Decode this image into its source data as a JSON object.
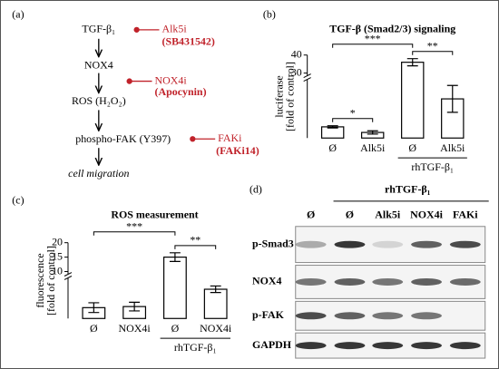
{
  "panel_labels": [
    "(a)",
    "(b)",
    "(c)",
    "(d)"
  ],
  "pathway": {
    "steps": [
      "TGF-β₁",
      "NOX4",
      "ROS (H₂O₂)",
      "phospho-FAK (Y397)",
      "cell migration"
    ],
    "inhibitors": [
      {
        "name": "Alk5i",
        "agent": "(SB431542)"
      },
      {
        "name": "NOX4i",
        "agent": "(Apocynin)"
      },
      {
        "name": "FAKi",
        "agent": "(FAKi14)"
      }
    ]
  },
  "chart_data": [
    {
      "type": "bar",
      "title": "TGF-β (Smad2/3) signaling",
      "y_label": [
        "luciferase",
        "[fold of control]"
      ],
      "categories": [
        "Ø",
        "Alk5i",
        "Ø",
        "Alk5i"
      ],
      "group_label": "rhTGF-β₁",
      "values": [
        1.0,
        0.5,
        36,
        3.5
      ],
      "errors": [
        0.1,
        0.15,
        2,
        1.2
      ],
      "ylim": [
        0,
        40
      ],
      "ybreak": [
        5,
        30
      ],
      "yticks": [
        30,
        40
      ],
      "significance": [
        {
          "from": 0,
          "to": 1,
          "label": "*"
        },
        {
          "from": 0,
          "to": 2,
          "label": "***"
        },
        {
          "from": 2,
          "to": 3,
          "label": "**"
        }
      ]
    },
    {
      "type": "bar",
      "title": "ROS measurement",
      "y_label": [
        "fluorescence",
        "[fold of control]"
      ],
      "categories": [
        "Ø",
        "NOX4i",
        "Ø",
        "NOX4i"
      ],
      "group_label": "rhTGF-β₁",
      "values": [
        1.0,
        1.1,
        15,
        2.7
      ],
      "errors": [
        0.45,
        0.4,
        1.5,
        0.3
      ],
      "ylim": [
        0,
        20
      ],
      "ybreak": [
        3.5,
        10
      ],
      "yticks": [
        10,
        15,
        20
      ],
      "significance": [
        {
          "from": 0,
          "to": 2,
          "label": "***"
        },
        {
          "from": 2,
          "to": 3,
          "label": "**"
        }
      ]
    }
  ],
  "blot": {
    "treatment_header": "rhTGF-β₁",
    "lanes": [
      "Ø",
      "Ø",
      "Alk5i",
      "NOX4i",
      "FAKi"
    ],
    "rows": [
      "p-Smad3",
      "NOX4",
      "p-FAK",
      "GAPDH"
    ]
  }
}
